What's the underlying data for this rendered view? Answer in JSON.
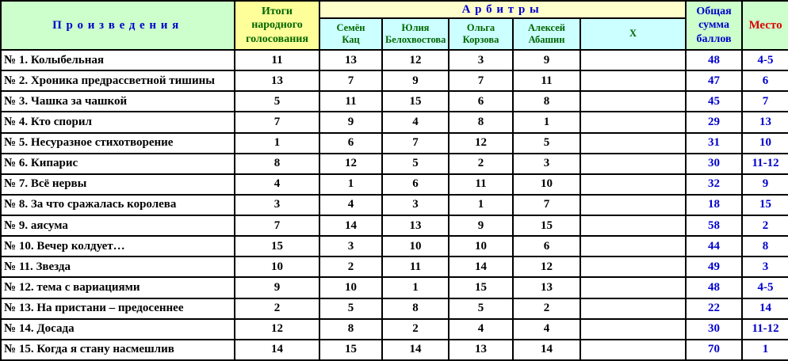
{
  "colors": {
    "border": "#000000",
    "works_header_bg": "#ccffcc",
    "vote_header_bg": "#ffff99",
    "arbiters_bar_bg": "#ffffcc",
    "arbiter_name_bg": "#ccffff",
    "total_header_bg": "#ccffcc",
    "place_header_bg": "#ccffcc",
    "body_bg": "#ffffff",
    "blue_text": "#0000cc",
    "green_text": "#006600",
    "red_text": "#dd0000",
    "black_text": "#000000"
  },
  "header": {
    "works": "Произведения",
    "vote": "Итоги народного голосования",
    "arbiters": "Арбитры",
    "arbiter_names": [
      "Семён\nКац",
      "Юлия\nБелохвостова",
      "Ольга\nКорзова",
      "Алексей\nАбашин",
      "Х"
    ],
    "total": "Общая сумма баллов",
    "place": "Место"
  },
  "rows": [
    {
      "title": "№ 1. Колыбельная",
      "public": "11",
      "scores": [
        "13",
        "12",
        "3",
        "9",
        ""
      ],
      "total": "48",
      "place": "4-5"
    },
    {
      "title": "№ 2. Хроника предрассветной тишины",
      "public": "13",
      "scores": [
        "7",
        "9",
        "7",
        "11",
        ""
      ],
      "total": "47",
      "place": "6"
    },
    {
      "title": "№ 3. Чашка за чашкой",
      "public": "5",
      "scores": [
        "11",
        "15",
        "6",
        "8",
        ""
      ],
      "total": "45",
      "place": "7"
    },
    {
      "title": "№ 4. Кто спорил",
      "public": "7",
      "scores": [
        "9",
        "4",
        "8",
        "1",
        ""
      ],
      "total": "29",
      "place": "13"
    },
    {
      "title": "№ 5. Несуразное стихотворение",
      "public": "1",
      "scores": [
        "6",
        "7",
        "12",
        "5",
        ""
      ],
      "total": "31",
      "place": "10"
    },
    {
      "title": "№ 6. Кипарис",
      "public": "8",
      "scores": [
        "12",
        "5",
        "2",
        "3",
        ""
      ],
      "total": "30",
      "place": "11-12"
    },
    {
      "title": "№ 7. Всё нервы",
      "public": "4",
      "scores": [
        "1",
        "6",
        "11",
        "10",
        ""
      ],
      "total": "32",
      "place": "9"
    },
    {
      "title": "№ 8. За что сражалась королева",
      "public": "3",
      "scores": [
        "4",
        "3",
        "1",
        "7",
        ""
      ],
      "total": "18",
      "place": "15"
    },
    {
      "title": "№ 9. аясума",
      "public": "7",
      "scores": [
        "14",
        "13",
        "9",
        "15",
        ""
      ],
      "total": "58",
      "place": "2"
    },
    {
      "title": "№ 10. Вечер колдует…",
      "public": "15",
      "scores": [
        "3",
        "10",
        "10",
        "6",
        ""
      ],
      "total": "44",
      "place": "8"
    },
    {
      "title": "№ 11. Звезда",
      "public": "10",
      "scores": [
        "2",
        "11",
        "14",
        "12",
        ""
      ],
      "total": "49",
      "place": "3"
    },
    {
      "title": "№ 12. тема с вариациями",
      "public": "9",
      "scores": [
        "10",
        "1",
        "15",
        "13",
        ""
      ],
      "total": "48",
      "place": "4-5"
    },
    {
      "title": "№ 13. На пристани – предосеннее",
      "public": "2",
      "scores": [
        "5",
        "8",
        "5",
        "2",
        ""
      ],
      "total": "22",
      "place": "14"
    },
    {
      "title": "№ 14. Досада",
      "public": "12",
      "scores": [
        "8",
        "2",
        "4",
        "4",
        ""
      ],
      "total": "30",
      "place": "11-12"
    },
    {
      "title": "№ 15. Когда я стану насмешлив",
      "public": "14",
      "scores": [
        "15",
        "14",
        "13",
        "14",
        ""
      ],
      "total": "70",
      "place": "1"
    }
  ],
  "chart_data": {
    "type": "table",
    "columns": [
      "Произведения",
      "Итоги народного голосования",
      "Семён Кац",
      "Юлия Белохвостова",
      "Ольга Корзова",
      "Алексей Абашин",
      "Х",
      "Общая сумма баллов",
      "Место"
    ],
    "rows": [
      [
        "№ 1. Колыбельная",
        11,
        13,
        12,
        3,
        9,
        null,
        48,
        "4-5"
      ],
      [
        "№ 2. Хроника предрассветной тишины",
        13,
        7,
        9,
        7,
        11,
        null,
        47,
        "6"
      ],
      [
        "№ 3. Чашка за чашкой",
        5,
        11,
        15,
        6,
        8,
        null,
        45,
        "7"
      ],
      [
        "№ 4. Кто спорил",
        7,
        9,
        4,
        8,
        1,
        null,
        29,
        "13"
      ],
      [
        "№ 5. Несуразное стихотворение",
        1,
        6,
        7,
        12,
        5,
        null,
        31,
        "10"
      ],
      [
        "№ 6. Кипарис",
        8,
        12,
        5,
        2,
        3,
        null,
        30,
        "11-12"
      ],
      [
        "№ 7. Всё нервы",
        4,
        1,
        6,
        11,
        10,
        null,
        32,
        "9"
      ],
      [
        "№ 8. За что сражалась королева",
        3,
        4,
        3,
        1,
        7,
        null,
        18,
        "15"
      ],
      [
        "№ 9. аясума",
        7,
        14,
        13,
        9,
        15,
        null,
        58,
        "2"
      ],
      [
        "№ 10. Вечер колдует…",
        15,
        3,
        10,
        10,
        6,
        null,
        44,
        "8"
      ],
      [
        "№ 11. Звезда",
        10,
        2,
        11,
        14,
        12,
        null,
        49,
        "3"
      ],
      [
        "№ 12. тема с вариациями",
        9,
        10,
        1,
        15,
        13,
        null,
        48,
        "4-5"
      ],
      [
        "№ 13. На пристани – предосеннее",
        2,
        5,
        8,
        5,
        2,
        null,
        22,
        "14"
      ],
      [
        "№ 14. Досада",
        12,
        8,
        2,
        4,
        4,
        null,
        30,
        "11-12"
      ],
      [
        "№ 15. Когда я стану насмешлив",
        14,
        15,
        14,
        13,
        14,
        null,
        70,
        "1"
      ]
    ]
  }
}
